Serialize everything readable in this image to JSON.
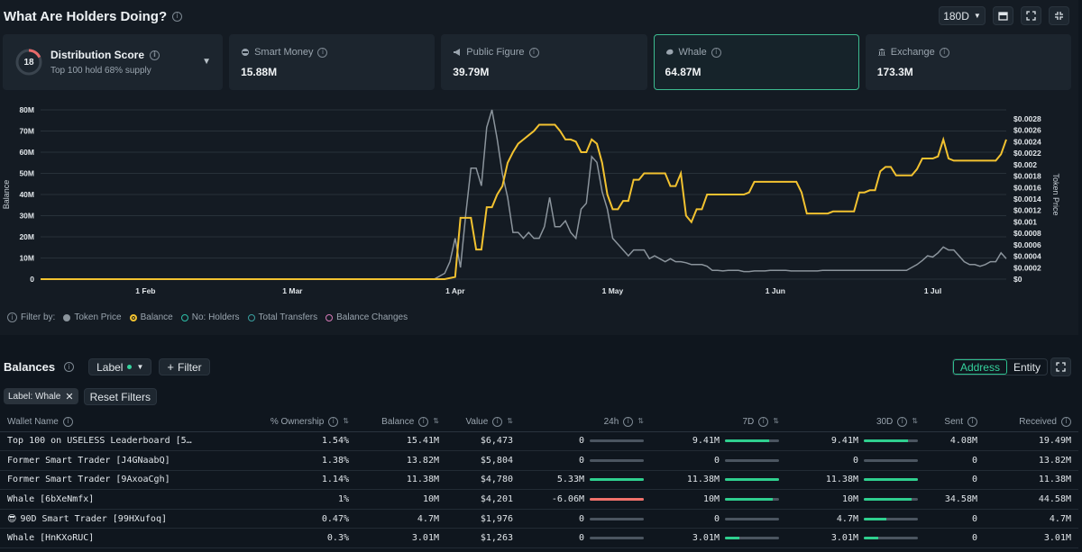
{
  "header": {
    "title": "What Are Holders Doing?",
    "range": "180D"
  },
  "cards": [
    {
      "type": "distribution",
      "score": "18",
      "score_fraction": 0.18,
      "title": "Distribution Score",
      "subtitle": "Top 100 hold 68% supply"
    },
    {
      "label": "Smart Money",
      "value": "15.88M",
      "icon": "brain-icon"
    },
    {
      "label": "Public Figure",
      "value": "39.79M",
      "icon": "megaphone-icon"
    },
    {
      "label": "Whale",
      "value": "64.87M",
      "icon": "whale-icon",
      "selected": true
    },
    {
      "label": "Exchange",
      "value": "173.3M",
      "icon": "bank-icon"
    }
  ],
  "chart_data": {
    "type": "line",
    "ylabel": "Balance",
    "y2label": "Token Price",
    "y_ticks": [
      "80M",
      "70M",
      "60M",
      "50M",
      "40M",
      "30M",
      "20M",
      "10M",
      "0"
    ],
    "y2_ticks": [
      "$0.0028",
      "$0.0026",
      "$0.0024",
      "$0.0022",
      "$0.002",
      "$0.0018",
      "$0.0016",
      "$0.0014",
      "$0.0012",
      "$0.001",
      "$0.0008",
      "$0.0006",
      "$0.0004",
      "$0.0002",
      "$0"
    ],
    "ylim": [
      0,
      80
    ],
    "y2lim": [
      0,
      0.0029
    ],
    "x_ticks": [
      "1 Feb",
      "1 Mar",
      "1 Apr",
      "1 May",
      "1 Jun",
      "1 Jul"
    ],
    "x_tick_days": [
      31,
      59,
      90,
      120,
      151,
      181
    ],
    "xlim": [
      11,
      195
    ],
    "series": [
      {
        "name": "Balance",
        "color": "#f2c230",
        "x": [
          11,
          88,
          90,
          91,
          92,
          93,
          94,
          95,
          96,
          97,
          98,
          99,
          100,
          101,
          102,
          103,
          104,
          105,
          106,
          107,
          108,
          109,
          110,
          111,
          112,
          113,
          114,
          115,
          116,
          117,
          118,
          119,
          120,
          121,
          122,
          123,
          124,
          125,
          126,
          127,
          128,
          129,
          130,
          131,
          132,
          133,
          134,
          135,
          136,
          137,
          138,
          139,
          140,
          141,
          142,
          143,
          144,
          145,
          146,
          147,
          148,
          149,
          150,
          151,
          152,
          153,
          154,
          155,
          156,
          157,
          158,
          159,
          160,
          161,
          162,
          163,
          164,
          165,
          166,
          167,
          168,
          169,
          170,
          171,
          172,
          173,
          174,
          175,
          176,
          177,
          178,
          179,
          180,
          181,
          182,
          183,
          184,
          185,
          186,
          187,
          188,
          189,
          190,
          191,
          192,
          193,
          194,
          195
        ],
        "y": [
          0,
          0,
          1,
          29,
          29,
          29,
          14,
          14,
          34,
          34,
          40,
          44,
          55,
          60,
          64,
          66,
          68,
          70,
          73,
          73,
          73,
          73,
          70,
          66,
          66,
          65,
          60,
          60,
          66,
          64,
          55,
          40,
          33,
          33,
          37,
          37,
          47,
          47,
          50,
          50,
          50,
          50,
          50,
          44,
          44,
          50,
          30,
          27,
          33,
          33,
          40,
          40,
          40,
          40,
          40,
          40,
          40,
          40,
          41,
          46,
          46,
          46,
          46,
          46,
          46,
          46,
          46,
          46,
          41,
          31,
          31,
          31,
          31,
          31,
          32,
          32,
          32,
          32,
          32,
          41,
          41,
          42,
          42,
          51,
          53,
          53,
          49,
          49,
          49,
          49,
          52,
          57,
          57,
          57,
          58,
          66,
          57,
          56,
          56,
          56,
          56,
          56,
          56,
          56,
          56,
          56,
          59,
          66
        ]
      }
    ],
    "series_price": {
      "name": "Token Price",
      "color": "#8b949c",
      "x": [
        11,
        86,
        88,
        89,
        90,
        91,
        92,
        93,
        94,
        95,
        96,
        97,
        98,
        99,
        100,
        101,
        102,
        103,
        104,
        105,
        106,
        107,
        108,
        109,
        110,
        111,
        112,
        113,
        114,
        115,
        116,
        117,
        118,
        119,
        120,
        121,
        122,
        123,
        124,
        125,
        126,
        127,
        128,
        129,
        130,
        131,
        132,
        133,
        134,
        135,
        136,
        137,
        138,
        139,
        140,
        141,
        142,
        143,
        144,
        145,
        146,
        147,
        148,
        149,
        150,
        151,
        152,
        153,
        154,
        155,
        156,
        157,
        158,
        159,
        160,
        161,
        162,
        163,
        164,
        165,
        166,
        167,
        168,
        169,
        170,
        171,
        172,
        173,
        174,
        175,
        176,
        177,
        178,
        179,
        180,
        181,
        182,
        183,
        184,
        185,
        186,
        187,
        188,
        189,
        190,
        191,
        192,
        193,
        194,
        195
      ],
      "y": [
        0,
        0,
        0.0001,
        0.0003,
        0.0007,
        0.0002,
        0.0011,
        0.0019,
        0.0019,
        0.0016,
        0.0026,
        0.0029,
        0.0024,
        0.0018,
        0.0014,
        0.0008,
        0.0008,
        0.0007,
        0.0008,
        0.0007,
        0.0007,
        0.0009,
        0.0014,
        0.0009,
        0.0009,
        0.001,
        0.0008,
        0.0007,
        0.0012,
        0.0013,
        0.0021,
        0.002,
        0.0015,
        0.0012,
        0.0007,
        0.0006,
        0.0005,
        0.0004,
        0.0005,
        0.0005,
        0.0005,
        0.00035,
        0.0004,
        0.00035,
        0.0003,
        0.00035,
        0.0003,
        0.0003,
        0.00028,
        0.00025,
        0.00025,
        0.00025,
        0.00022,
        0.00015,
        0.00015,
        0.00014,
        0.00015,
        0.00015,
        0.00015,
        0.00013,
        0.00013,
        0.00014,
        0.00014,
        0.00014,
        0.00015,
        0.00015,
        0.00015,
        0.00015,
        0.00014,
        0.00014,
        0.00014,
        0.00014,
        0.00014,
        0.00014,
        0.00015,
        0.00015,
        0.00015,
        0.00015,
        0.00015,
        0.00015,
        0.00015,
        0.00015,
        0.00015,
        0.00015,
        0.00015,
        0.00015,
        0.00015,
        0.00015,
        0.00015,
        0.00015,
        0.00015,
        0.0002,
        0.00025,
        0.00032,
        0.0004,
        0.00038,
        0.00045,
        0.00055,
        0.0005,
        0.0005,
        0.0004,
        0.0003,
        0.00025,
        0.00025,
        0.00022,
        0.00025,
        0.0003,
        0.0003,
        0.00045,
        0.00035
      ]
    }
  },
  "filters": {
    "label": "Filter by:",
    "items": [
      {
        "label": "Token Price",
        "color": "#8b949c",
        "filled": true
      },
      {
        "label": "Balance",
        "color": "#f2c230",
        "filled": true
      },
      {
        "label": "No: Holders",
        "color": "#2dbfa8",
        "filled": false
      },
      {
        "label": "Total Transfers",
        "color": "#3aa0a0",
        "filled": false
      },
      {
        "label": "Balance Changes",
        "color": "#d67ab8",
        "filled": false
      }
    ]
  },
  "balances": {
    "title": "Balances",
    "label_btn": "Label",
    "filter_btn": "Filter",
    "toggle": [
      "Address",
      "Entity"
    ],
    "chips": [
      "Label: Whale",
      "Reset Filters"
    ],
    "columns": [
      "Wallet Name",
      "% Ownership",
      "Balance",
      "Value",
      "24h",
      "7D",
      "30D",
      "Sent",
      "Received"
    ],
    "rows": [
      {
        "name": "Top 100 on USELESS Leaderboard [5…",
        "own": "1.54%",
        "bal": "15.41M",
        "val": "$6,473",
        "d1": "0",
        "d1f": 0,
        "d7": "9.41M",
        "d7f": 0.82,
        "d30": "9.41M",
        "d30f": 0.82,
        "sent": "4.08M",
        "recv": "19.49M"
      },
      {
        "name": "Former Smart Trader [J4GNaabQ]",
        "own": "1.38%",
        "bal": "13.82M",
        "val": "$5,804",
        "d1": "0",
        "d1f": 0,
        "d7": "0",
        "d7f": 0,
        "d30": "0",
        "d30f": 0,
        "sent": "0",
        "recv": "13.82M"
      },
      {
        "name": "Former Smart Trader [9AxoaCgh]",
        "own": "1.14%",
        "bal": "11.38M",
        "val": "$4,780",
        "d1": "5.33M",
        "d1f": 1,
        "d7": "11.38M",
        "d7f": 1,
        "d30": "11.38M",
        "d30f": 1,
        "sent": "0",
        "recv": "11.38M"
      },
      {
        "name": "Whale [6bXeNmfx]",
        "own": "1%",
        "bal": "10M",
        "val": "$4,201",
        "d1": "-6.06M",
        "d1f": -1,
        "d7": "10M",
        "d7f": 0.88,
        "d30": "10M",
        "d30f": 0.88,
        "sent": "34.58M",
        "recv": "44.58M"
      },
      {
        "name": "90D Smart Trader [99HXufoq]",
        "own": "0.47%",
        "bal": "4.7M",
        "val": "$1,976",
        "d1": "0",
        "d1f": 0,
        "d7": "0",
        "d7f": 0,
        "d30": "4.7M",
        "d30f": 0.41,
        "sent": "0",
        "recv": "4.7M",
        "emoji": "😎"
      },
      {
        "name": "Whale [HnKXoRUC]",
        "own": "0.3%",
        "bal": "3.01M",
        "val": "$1,263",
        "d1": "0",
        "d1f": 0,
        "d7": "3.01M",
        "d7f": 0.26,
        "d30": "3.01M",
        "d30f": 0.26,
        "sent": "0",
        "recv": "3.01M"
      }
    ]
  }
}
